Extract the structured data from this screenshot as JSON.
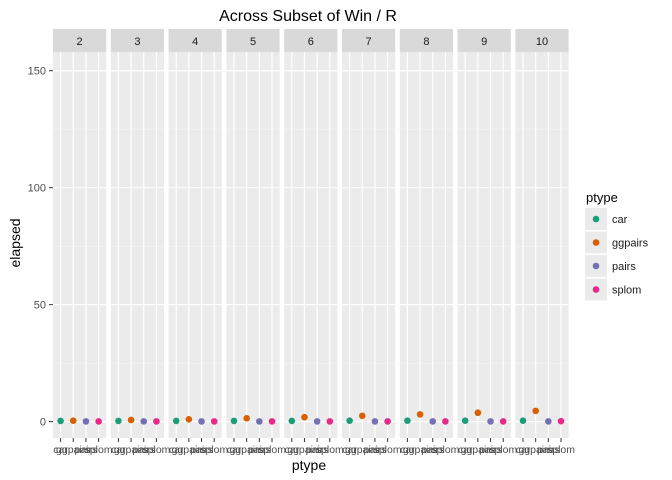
{
  "chart_data": {
    "type": "scatter",
    "title": "Across Subset of Win / R",
    "xlabel": "ptype",
    "ylabel": "elapsed",
    "ylim": [
      -7,
      158
    ],
    "yticks": [
      0,
      50,
      100,
      150
    ],
    "grid": true,
    "categories": [
      "car",
      "ggpairs",
      "pairs",
      "splom"
    ],
    "facets": [
      {
        "label": "2",
        "values": [
          0.3,
          0.4,
          0.1,
          0.1
        ]
      },
      {
        "label": "3",
        "values": [
          0.3,
          0.7,
          0.1,
          0.1
        ]
      },
      {
        "label": "4",
        "values": [
          0.3,
          1.0,
          0.1,
          0.1
        ]
      },
      {
        "label": "5",
        "values": [
          0.3,
          1.4,
          0.1,
          0.1
        ]
      },
      {
        "label": "6",
        "values": [
          0.3,
          1.9,
          0.1,
          0.1
        ]
      },
      {
        "label": "7",
        "values": [
          0.4,
          2.5,
          0.1,
          0.1
        ]
      },
      {
        "label": "8",
        "values": [
          0.4,
          3.1,
          0.1,
          0.1
        ]
      },
      {
        "label": "9",
        "values": [
          0.4,
          3.8,
          0.1,
          0.1
        ]
      },
      {
        "label": "10",
        "values": [
          0.4,
          4.6,
          0.1,
          0.2
        ]
      }
    ],
    "legend": {
      "title": "ptype",
      "placement": "right",
      "entries": [
        {
          "label": "car",
          "color": "#1b9e77"
        },
        {
          "label": "ggpairs",
          "color": "#d95f02"
        },
        {
          "label": "pairs",
          "color": "#7570b3"
        },
        {
          "label": "splom",
          "color": "#e7298a"
        }
      ]
    }
  }
}
